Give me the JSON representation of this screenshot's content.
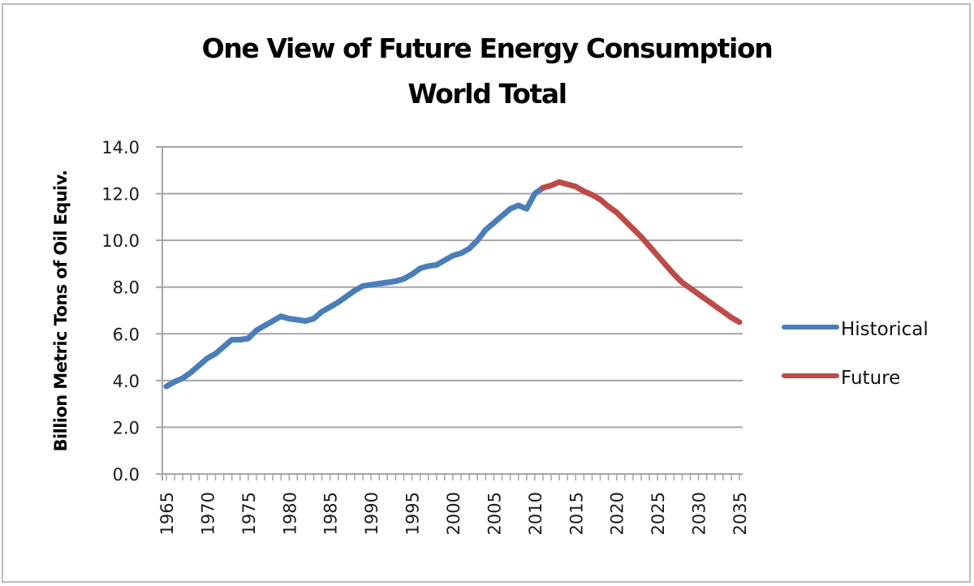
{
  "chart_data": {
    "type": "line",
    "title": "One View of Future Energy Consumption",
    "subtitle": "World Total",
    "xlabel": "",
    "ylabel": "Billion Metric Tons of Oil Equiv.",
    "ylim": [
      0,
      14
    ],
    "xlim": [
      1965,
      2035
    ],
    "yticks": [
      "0.0",
      "2.0",
      "4.0",
      "6.0",
      "8.0",
      "10.0",
      "12.0",
      "14.0"
    ],
    "xticks": [
      "1965",
      "1970",
      "1975",
      "1980",
      "1985",
      "1990",
      "1995",
      "2000",
      "2005",
      "2010",
      "2015",
      "2020",
      "2025",
      "2030",
      "2035"
    ],
    "grid": true,
    "legend_position": "right",
    "series": [
      {
        "name": "Historical",
        "color": "#4a7ebb",
        "points": [
          [
            1965,
            3.75
          ],
          [
            1966,
            3.95
          ],
          [
            1967,
            4.1
          ],
          [
            1968,
            4.35
          ],
          [
            1969,
            4.65
          ],
          [
            1970,
            4.95
          ],
          [
            1971,
            5.15
          ],
          [
            1972,
            5.45
          ],
          [
            1973,
            5.75
          ],
          [
            1974,
            5.75
          ],
          [
            1975,
            5.8
          ],
          [
            1976,
            6.15
          ],
          [
            1977,
            6.35
          ],
          [
            1978,
            6.55
          ],
          [
            1979,
            6.75
          ],
          [
            1980,
            6.65
          ],
          [
            1981,
            6.6
          ],
          [
            1982,
            6.55
          ],
          [
            1983,
            6.65
          ],
          [
            1984,
            6.95
          ],
          [
            1985,
            7.15
          ],
          [
            1986,
            7.35
          ],
          [
            1987,
            7.6
          ],
          [
            1988,
            7.85
          ],
          [
            1989,
            8.05
          ],
          [
            1990,
            8.1
          ],
          [
            1991,
            8.15
          ],
          [
            1992,
            8.2
          ],
          [
            1993,
            8.25
          ],
          [
            1994,
            8.35
          ],
          [
            1995,
            8.55
          ],
          [
            1996,
            8.8
          ],
          [
            1997,
            8.9
          ],
          [
            1998,
            8.95
          ],
          [
            1999,
            9.15
          ],
          [
            2000,
            9.35
          ],
          [
            2001,
            9.45
          ],
          [
            2002,
            9.65
          ],
          [
            2003,
            10.0
          ],
          [
            2004,
            10.45
          ],
          [
            2005,
            10.75
          ],
          [
            2006,
            11.05
          ],
          [
            2007,
            11.35
          ],
          [
            2008,
            11.5
          ],
          [
            2009,
            11.35
          ],
          [
            2010,
            12.0
          ],
          [
            2011,
            12.25
          ]
        ]
      },
      {
        "name": "Future",
        "color": "#be4b48",
        "points": [
          [
            2011,
            12.25
          ],
          [
            2012,
            12.35
          ],
          [
            2013,
            12.5
          ],
          [
            2014,
            12.4
          ],
          [
            2015,
            12.3
          ],
          [
            2016,
            12.1
          ],
          [
            2017,
            11.95
          ],
          [
            2018,
            11.75
          ],
          [
            2019,
            11.45
          ],
          [
            2020,
            11.2
          ],
          [
            2021,
            10.85
          ],
          [
            2022,
            10.5
          ],
          [
            2023,
            10.15
          ],
          [
            2024,
            9.75
          ],
          [
            2025,
            9.35
          ],
          [
            2026,
            8.95
          ],
          [
            2027,
            8.55
          ],
          [
            2028,
            8.2
          ],
          [
            2029,
            7.95
          ],
          [
            2030,
            7.7
          ],
          [
            2031,
            7.45
          ],
          [
            2032,
            7.2
          ],
          [
            2033,
            6.95
          ],
          [
            2034,
            6.7
          ],
          [
            2035,
            6.5
          ]
        ]
      }
    ]
  }
}
